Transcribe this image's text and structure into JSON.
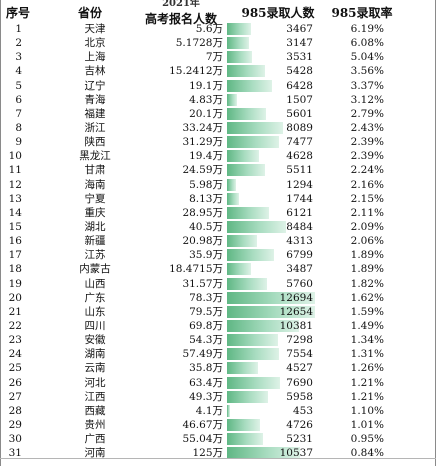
{
  "header": {
    "seq": "序号",
    "province": "省份",
    "year": "2021年",
    "exam_count": "高考报名人数",
    "admit_985": "985录取人数",
    "rate_985": "985录取率"
  },
  "colors": {
    "bar_dark": "#5fb784",
    "bar_light": "#def2e7"
  },
  "bar_max": 12694,
  "rows": [
    {
      "no": "1",
      "province": "天津",
      "exam": "5.6万",
      "admit": "3467",
      "admit_value": 3467,
      "rate": "6.19%"
    },
    {
      "no": "2",
      "province": "北京",
      "exam": "5.1728万",
      "admit": "3147",
      "admit_value": 3147,
      "rate": "6.08%"
    },
    {
      "no": "3",
      "province": "上海",
      "exam": "7万",
      "admit": "3531",
      "admit_value": 3531,
      "rate": "5.04%"
    },
    {
      "no": "4",
      "province": "吉林",
      "exam": "15.2412万",
      "admit": "5428",
      "admit_value": 5428,
      "rate": "3.56%"
    },
    {
      "no": "5",
      "province": "辽宁",
      "exam": "19.1万",
      "admit": "6428",
      "admit_value": 6428,
      "rate": "3.37%"
    },
    {
      "no": "6",
      "province": "青海",
      "exam": "4.83万",
      "admit": "1507",
      "admit_value": 1507,
      "rate": "3.12%"
    },
    {
      "no": "7",
      "province": "福建",
      "exam": "20.1万",
      "admit": "5601",
      "admit_value": 5601,
      "rate": "2.79%"
    },
    {
      "no": "8",
      "province": "浙江",
      "exam": "33.24万",
      "admit": "8089",
      "admit_value": 8089,
      "rate": "2.43%"
    },
    {
      "no": "9",
      "province": "陕西",
      "exam": "31.29万",
      "admit": "7477",
      "admit_value": 7477,
      "rate": "2.39%"
    },
    {
      "no": "10",
      "province": "黑龙江",
      "exam": "19.4万",
      "admit": "4628",
      "admit_value": 4628,
      "rate": "2.39%"
    },
    {
      "no": "11",
      "province": "甘肃",
      "exam": "24.59万",
      "admit": "5511",
      "admit_value": 5511,
      "rate": "2.24%"
    },
    {
      "no": "12",
      "province": "海南",
      "exam": "5.98万",
      "admit": "1294",
      "admit_value": 1294,
      "rate": "2.16%"
    },
    {
      "no": "13",
      "province": "宁夏",
      "exam": "8.13万",
      "admit": "1744",
      "admit_value": 1744,
      "rate": "2.15%"
    },
    {
      "no": "14",
      "province": "重庆",
      "exam": "28.95万",
      "admit": "6121",
      "admit_value": 6121,
      "rate": "2.11%"
    },
    {
      "no": "15",
      "province": "湖北",
      "exam": "40.5万",
      "admit": "8484",
      "admit_value": 8484,
      "rate": "2.09%"
    },
    {
      "no": "16",
      "province": "新疆",
      "exam": "20.98万",
      "admit": "4313",
      "admit_value": 4313,
      "rate": "2.06%"
    },
    {
      "no": "17",
      "province": "江苏",
      "exam": "35.9万",
      "admit": "6799",
      "admit_value": 6799,
      "rate": "1.89%"
    },
    {
      "no": "18",
      "province": "内蒙古",
      "exam": "18.4715万",
      "admit": "3487",
      "admit_value": 3487,
      "rate": "1.89%"
    },
    {
      "no": "19",
      "province": "山西",
      "exam": "31.57万",
      "admit": "5760",
      "admit_value": 5760,
      "rate": "1.82%"
    },
    {
      "no": "20",
      "province": "广东",
      "exam": "78.3万",
      "admit": "12694",
      "admit_value": 12694,
      "rate": "1.62%"
    },
    {
      "no": "21",
      "province": "山东",
      "exam": "79.5万",
      "admit": "12654",
      "admit_value": 12654,
      "rate": "1.59%"
    },
    {
      "no": "22",
      "province": "四川",
      "exam": "69.8万",
      "admit": "10381",
      "admit_value": 10381,
      "rate": "1.49%"
    },
    {
      "no": "23",
      "province": "安徽",
      "exam": "54.3万",
      "admit": "7298",
      "admit_value": 7298,
      "rate": "1.34%"
    },
    {
      "no": "24",
      "province": "湖南",
      "exam": "57.49万",
      "admit": "7554",
      "admit_value": 7554,
      "rate": "1.31%"
    },
    {
      "no": "25",
      "province": "云南",
      "exam": "35.8万",
      "admit": "4527",
      "admit_value": 4527,
      "rate": "1.26%"
    },
    {
      "no": "26",
      "province": "河北",
      "exam": "63.4万",
      "admit": "7690",
      "admit_value": 7690,
      "rate": "1.21%"
    },
    {
      "no": "27",
      "province": "江西",
      "exam": "49.3万",
      "admit": "5958",
      "admit_value": 5958,
      "rate": "1.21%"
    },
    {
      "no": "28",
      "province": "西藏",
      "exam": "4.1万",
      "admit": "453",
      "admit_value": 453,
      "rate": "1.10%"
    },
    {
      "no": "29",
      "province": "贵州",
      "exam": "46.67万",
      "admit": "4726",
      "admit_value": 4726,
      "rate": "1.01%"
    },
    {
      "no": "30",
      "province": "广西",
      "exam": "55.04万",
      "admit": "5231",
      "admit_value": 5231,
      "rate": "0.95%"
    },
    {
      "no": "31",
      "province": "河南",
      "exam": "125万",
      "admit": "10537",
      "admit_value": 10537,
      "rate": "0.84%"
    }
  ]
}
